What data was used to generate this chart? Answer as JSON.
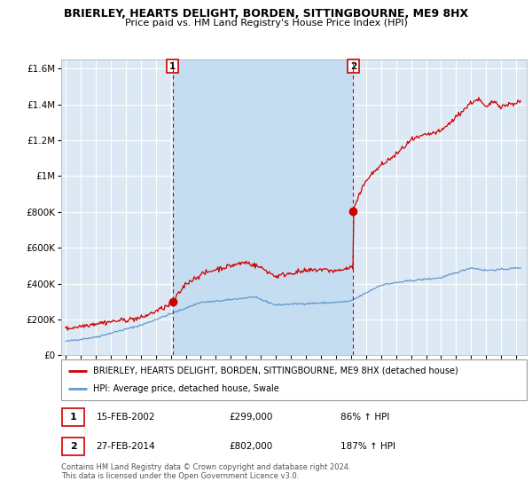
{
  "title": "BRIERLEY, HEARTS DELIGHT, BORDEN, SITTINGBOURNE, ME9 8HX",
  "subtitle": "Price paid vs. HM Land Registry's House Price Index (HPI)",
  "legend_line1": "BRIERLEY, HEARTS DELIGHT, BORDEN, SITTINGBOURNE, ME9 8HX (detached house)",
  "legend_line2": "HPI: Average price, detached house, Swale",
  "transaction1_date": "15-FEB-2002",
  "transaction1_price": "£299,000",
  "transaction1_hpi": "86% ↑ HPI",
  "transaction2_date": "27-FEB-2014",
  "transaction2_price": "£802,000",
  "transaction2_hpi": "187% ↑ HPI",
  "footer": "Contains HM Land Registry data © Crown copyright and database right 2024.\nThis data is licensed under the Open Government Licence v3.0.",
  "background_color": "#ffffff",
  "plot_bg_color": "#dce9f5",
  "grid_color": "#ffffff",
  "red_line_color": "#cc0000",
  "blue_line_color": "#6699cc",
  "dashed_line_color": "#cc0000",
  "marker1_date_num": 2002.12,
  "marker1_value": 299000,
  "marker2_date_num": 2014.15,
  "marker2_value": 802000,
  "ylim": [
    0,
    1650000
  ],
  "xlim_start": 1994.7,
  "xlim_end": 2025.7,
  "yticks": [
    0,
    200000,
    400000,
    600000,
    800000,
    1000000,
    1200000,
    1400000,
    1600000
  ],
  "ytick_labels": [
    "£0",
    "£200K",
    "£400K",
    "£600K",
    "£800K",
    "£1M",
    "£1.2M",
    "£1.4M",
    "£1.6M"
  ]
}
